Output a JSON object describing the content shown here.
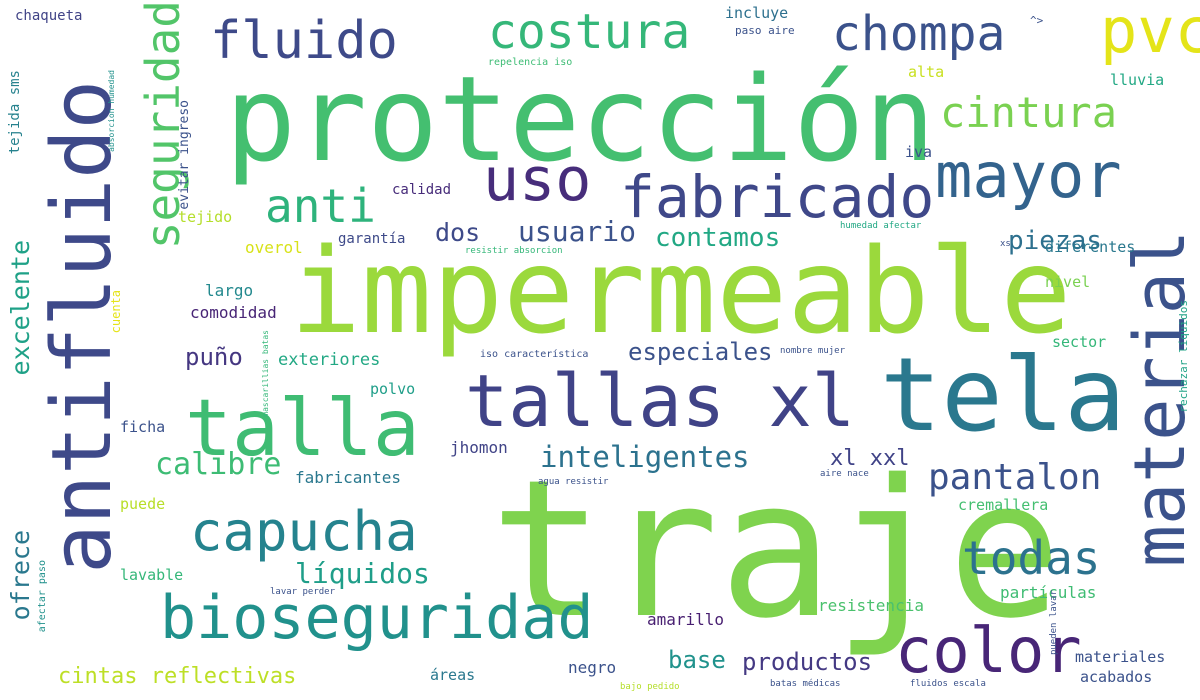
{
  "words": {
    "impermeable": {
      "text": "impermeable",
      "color": "#9bd93c"
    },
    "traje": {
      "text": "traje",
      "color": "#7fd34e"
    },
    "proteccion": {
      "text": "protección",
      "color": "#44bf70"
    },
    "antifluido": {
      "text": "antifluido",
      "color": "#3e4989"
    },
    "tela": {
      "text": "tela",
      "color": "#2a788e"
    },
    "material": {
      "text": "material",
      "color": "#3b528b"
    },
    "tallas_xl": {
      "text": "tallas xl",
      "color": "#404387"
    },
    "talla": {
      "text": "talla",
      "color": "#3fbc73"
    },
    "bioseguridad": {
      "text": "bioseguridad",
      "color": "#21918c"
    },
    "fabricado": {
      "text": "fabricado",
      "color": "#3f4889"
    },
    "uso": {
      "text": "uso",
      "color": "#472d7b"
    },
    "mayor": {
      "text": "mayor",
      "color": "#33638d"
    },
    "seguridad": {
      "text": "seguridad",
      "color": "#52c569"
    },
    "capucha": {
      "text": "capucha",
      "color": "#25838e"
    },
    "color": {
      "text": "color",
      "color": "#482677"
    },
    "costura": {
      "text": "costura",
      "color": "#35b779"
    },
    "fluido": {
      "text": "fluido",
      "color": "#3e4a89"
    },
    "chompa": {
      "text": "chompa",
      "color": "#3b528b"
    },
    "pvc": {
      "text": "pvc",
      "color": "#e4e419"
    },
    "cintura": {
      "text": "cintura",
      "color": "#7ad151"
    },
    "anti": {
      "text": "anti",
      "color": "#2eb37c"
    },
    "todas": {
      "text": "todas",
      "color": "#2c728e"
    },
    "pantalon": {
      "text": "pantalon",
      "color": "#3b528b"
    },
    "liquidos": {
      "text": "líquidos",
      "color": "#1f9e89"
    },
    "calibre": {
      "text": "calibre",
      "color": "#3dbc74"
    },
    "inteligentes": {
      "text": "inteligentes",
      "color": "#2c728e"
    },
    "usuario": {
      "text": "usuario",
      "color": "#3b528b"
    },
    "contamos": {
      "text": "contamos",
      "color": "#22a884"
    },
    "piezas": {
      "text": "piezas",
      "color": "#2d708e"
    },
    "especiales": {
      "text": "especiales",
      "color": "#3b528b"
    },
    "excelente": {
      "text": "excelente",
      "color": "#1fa187"
    },
    "ofrece": {
      "text": "ofrece",
      "color": "#2a788e"
    },
    "xl_xxl": {
      "text": "xl xxl",
      "color": "#404387"
    },
    "dos": {
      "text": "dos",
      "color": "#3e4a89"
    },
    "puno": {
      "text": "puño",
      "color": "#453781"
    },
    "base": {
      "text": "base",
      "color": "#20928c"
    },
    "productos": {
      "text": "productos",
      "color": "#443983"
    },
    "cintas_reflectivas": {
      "text": "cintas reflectivas",
      "color": "#bddf26"
    },
    "chaqueta": {
      "text": "chaqueta",
      "color": "#414487"
    },
    "tejida_sms": {
      "text": "tejida sms",
      "color": "#26828e"
    },
    "incluye": {
      "text": "incluye",
      "color": "#2d708e"
    },
    "paso_aire": {
      "text": "paso aire",
      "color": "#3b528b"
    },
    "repelencia_iso": {
      "text": "repelencia iso",
      "color": "#3dbc74"
    },
    "alta": {
      "text": "alta",
      "color": "#c8e020"
    },
    "lluvia": {
      "text": "lluvia",
      "color": "#22a884"
    },
    "iva": {
      "text": "iva",
      "color": "#3b528b"
    },
    "calidad": {
      "text": "calidad",
      "color": "#472c7a"
    },
    "tejido": {
      "text": "tejido",
      "color": "#b5de2b"
    },
    "overol": {
      "text": "overol",
      "color": "#d8e219"
    },
    "garantia": {
      "text": "garantía",
      "color": "#3e4a89"
    },
    "largo": {
      "text": "largo",
      "color": "#23898e"
    },
    "comodidad": {
      "text": "comodidad",
      "color": "#482576"
    },
    "exteriores": {
      "text": "exteriores",
      "color": "#22a884"
    },
    "polvo": {
      "text": "polvo",
      "color": "#1f9e89"
    },
    "ficha": {
      "text": "ficha",
      "color": "#3b528b"
    },
    "jhomon": {
      "text": "jhomon",
      "color": "#414487"
    },
    "fabricantes": {
      "text": "fabricantes",
      "color": "#2a788e"
    },
    "puede": {
      "text": "puede",
      "color": "#b8de29"
    },
    "lavable": {
      "text": "lavable",
      "color": "#35b779"
    },
    "areas": {
      "text": "áreas",
      "color": "#2a788e"
    },
    "negro": {
      "text": "negro",
      "color": "#3b528b"
    },
    "amarillo": {
      "text": "amarillo",
      "color": "#481f71"
    },
    "resistencia": {
      "text": "resistencia",
      "color": "#4ac16d"
    },
    "particulas": {
      "text": "partículas",
      "color": "#3fbc73"
    },
    "cremallera": {
      "text": "cremallera",
      "color": "#44bf70"
    },
    "diferentes": {
      "text": "diferentes",
      "color": "#2a788e"
    },
    "nivel": {
      "text": "nivel",
      "color": "#7ad151"
    },
    "sector": {
      "text": "sector",
      "color": "#35b779"
    },
    "materiales": {
      "text": "materiales",
      "color": "#3b528b"
    },
    "acabados": {
      "text": "acabados",
      "color": "#3b528b"
    },
    "evitar_ingreso": {
      "text": "evitar ingreso",
      "color": "#3b528b"
    },
    "cuenta": {
      "text": "cuenta",
      "color": "#e5e419"
    },
    "afectar_paso": {
      "text": "afectar paso",
      "color": "#21918c"
    },
    "absorcion_humedad": {
      "text": "absorcion humedad",
      "color": "#21918c"
    },
    "mascarillias_batas": {
      "text": "mascarillias batas",
      "color": "#35b779"
    },
    "resistir_absorcion": {
      "text": "resistir absorcion",
      "color": "#35b779"
    },
    "humedad_afectar": {
      "text": "humedad afectar",
      "color": "#22a884"
    },
    "iso_caracteristica": {
      "text": "iso característica",
      "color": "#3b528b"
    },
    "nombre_mujer": {
      "text": "nombre mujer",
      "color": "#3b528b"
    },
    "agua_resistir": {
      "text": "agua resistir",
      "color": "#3b528b"
    },
    "aire_nace": {
      "text": "aire nace",
      "color": "#3b528b"
    },
    "lavar_perder": {
      "text": "lavar perder",
      "color": "#3b528b"
    },
    "bajo_pedido": {
      "text": "bajo pedido",
      "color": "#b5de2b"
    },
    "batas_medicas": {
      "text": "batas médicas",
      "color": "#3b528b"
    },
    "fluidos_escala": {
      "text": "fluidos escala",
      "color": "#3b528b"
    },
    "pueden_lavar": {
      "text": "pueden lavar",
      "color": "#3b528b"
    },
    "rechazar_liquidos": {
      "text": "rechazar líquidos",
      "color": "#20a386"
    },
    "xs": {
      "text": "xs",
      "color": "#3b528b"
    },
    "dos_small": {
      "text": "dos",
      "color": "#3b528b"
    },
    "chevron": {
      "text": "^>",
      "color": "#3b528b"
    }
  }
}
